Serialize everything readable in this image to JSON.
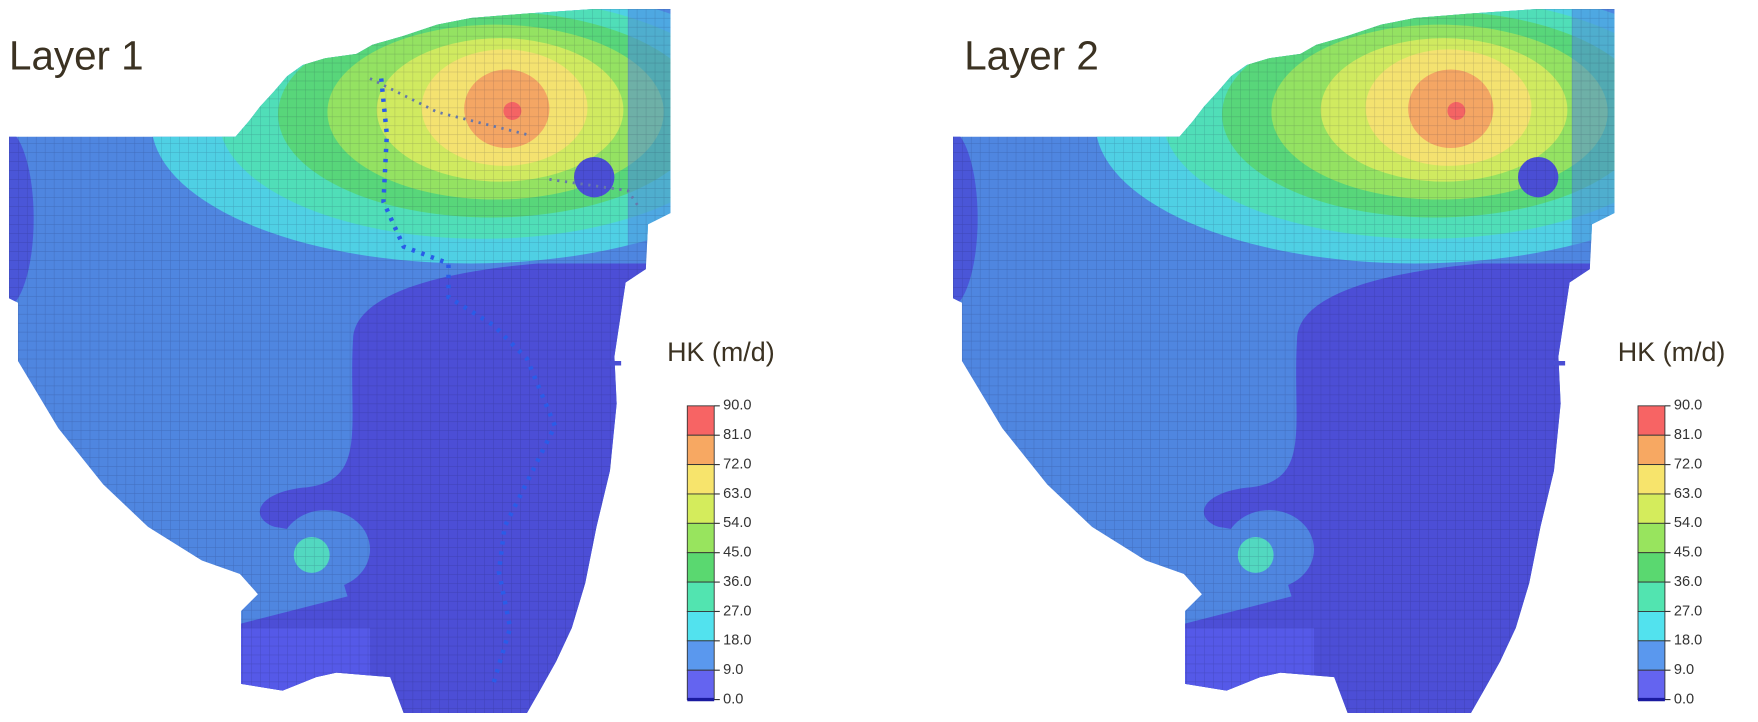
{
  "panels": [
    {
      "title": "Layer 1",
      "legend": {
        "title": "HK (m/d)",
        "labels": [
          "90.0",
          "81.0",
          "72.0",
          "63.0",
          "54.0",
          "45.0",
          "36.0",
          "27.0",
          "18.0",
          "9.0",
          "0.0"
        ],
        "colors": [
          "#f76464",
          "#f7a862",
          "#f7e46c",
          "#d4ec5c",
          "#98e45e",
          "#5ad870",
          "#52e4b0",
          "#52e2ee",
          "#5a98ee",
          "#6464f0"
        ]
      }
    },
    {
      "title": "Layer 2",
      "legend": {
        "title": "HK (m/d)",
        "labels": [
          "90.0",
          "81.0",
          "72.0",
          "63.0",
          "54.0",
          "45.0",
          "36.0",
          "27.0",
          "18.0",
          "9.0",
          "0.0"
        ],
        "colors": [
          "#f76464",
          "#f7a862",
          "#f7e46c",
          "#d4ec5c",
          "#98e45e",
          "#5ad870",
          "#52e4b0",
          "#52e2ee",
          "#5a98ee",
          "#6464f0"
        ]
      }
    }
  ]
}
